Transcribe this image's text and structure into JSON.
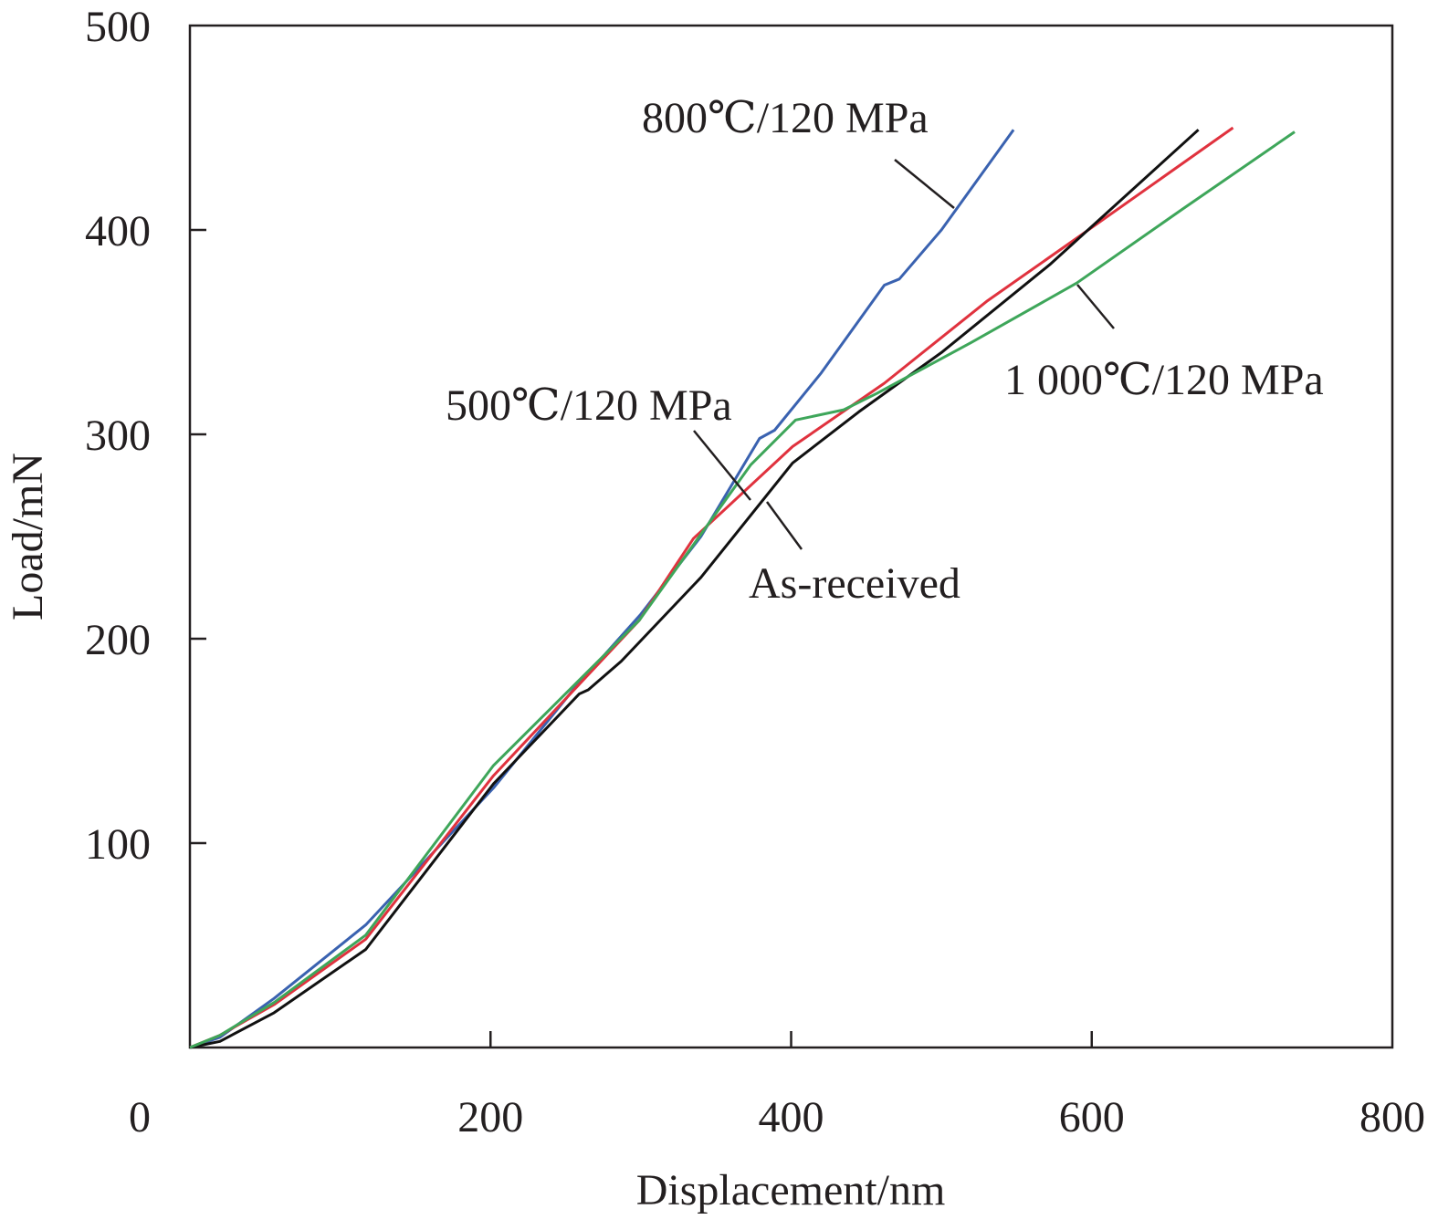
{
  "chart_data": {
    "type": "line",
    "title": "",
    "xlabel": "Displacement/nm",
    "ylabel": "Load/mN",
    "xlim": [
      0,
      800
    ],
    "ylim": [
      0,
      500
    ],
    "xticks": [
      0,
      200,
      400,
      600,
      800
    ],
    "yticks": [
      100,
      200,
      300,
      400,
      500
    ],
    "grid": false,
    "legend": "none (inline annotations)",
    "series": [
      {
        "name": "800℃/120 MPa",
        "color": "#3a62b0",
        "x": [
          0,
          20,
          56,
          117,
          202,
          255,
          300,
          340,
          379,
          389,
          420,
          462,
          472,
          500,
          548
        ],
        "y": [
          0,
          5,
          24,
          60,
          127,
          175,
          212,
          250,
          298,
          302,
          330,
          373,
          376,
          400,
          449
        ]
      },
      {
        "name": "500℃/120 MPa",
        "color": "#e0323e",
        "x": [
          0,
          20,
          56,
          117,
          202,
          299,
          335,
          401,
          462,
          530,
          590,
          694
        ],
        "y": [
          0,
          6,
          21,
          53,
          133,
          209,
          249,
          294,
          325,
          365,
          396,
          450
        ]
      },
      {
        "name": "As-received",
        "color": "#111111",
        "x": [
          0,
          20,
          56,
          117,
          202,
          259,
          265,
          287,
          340,
          401,
          445,
          500,
          572,
          671
        ],
        "y": [
          0,
          3,
          17,
          48,
          129,
          173,
          175,
          189,
          230,
          286,
          311,
          340,
          383,
          449
        ]
      },
      {
        "name": "1 000℃/120 MPa",
        "color": "#3ea65a",
        "x": [
          0,
          20,
          56,
          117,
          202,
          299,
          373,
          403,
          435,
          457,
          520,
          590,
          660,
          735
        ],
        "y": [
          0,
          6,
          22,
          55,
          138,
          209,
          285,
          307,
          312,
          320,
          345,
          374,
          410,
          448
        ]
      }
    ],
    "annotations": [
      "800℃/120 MPa",
      "500℃/120 MPa",
      "As-received",
      "1 000℃/120 MPa"
    ]
  }
}
